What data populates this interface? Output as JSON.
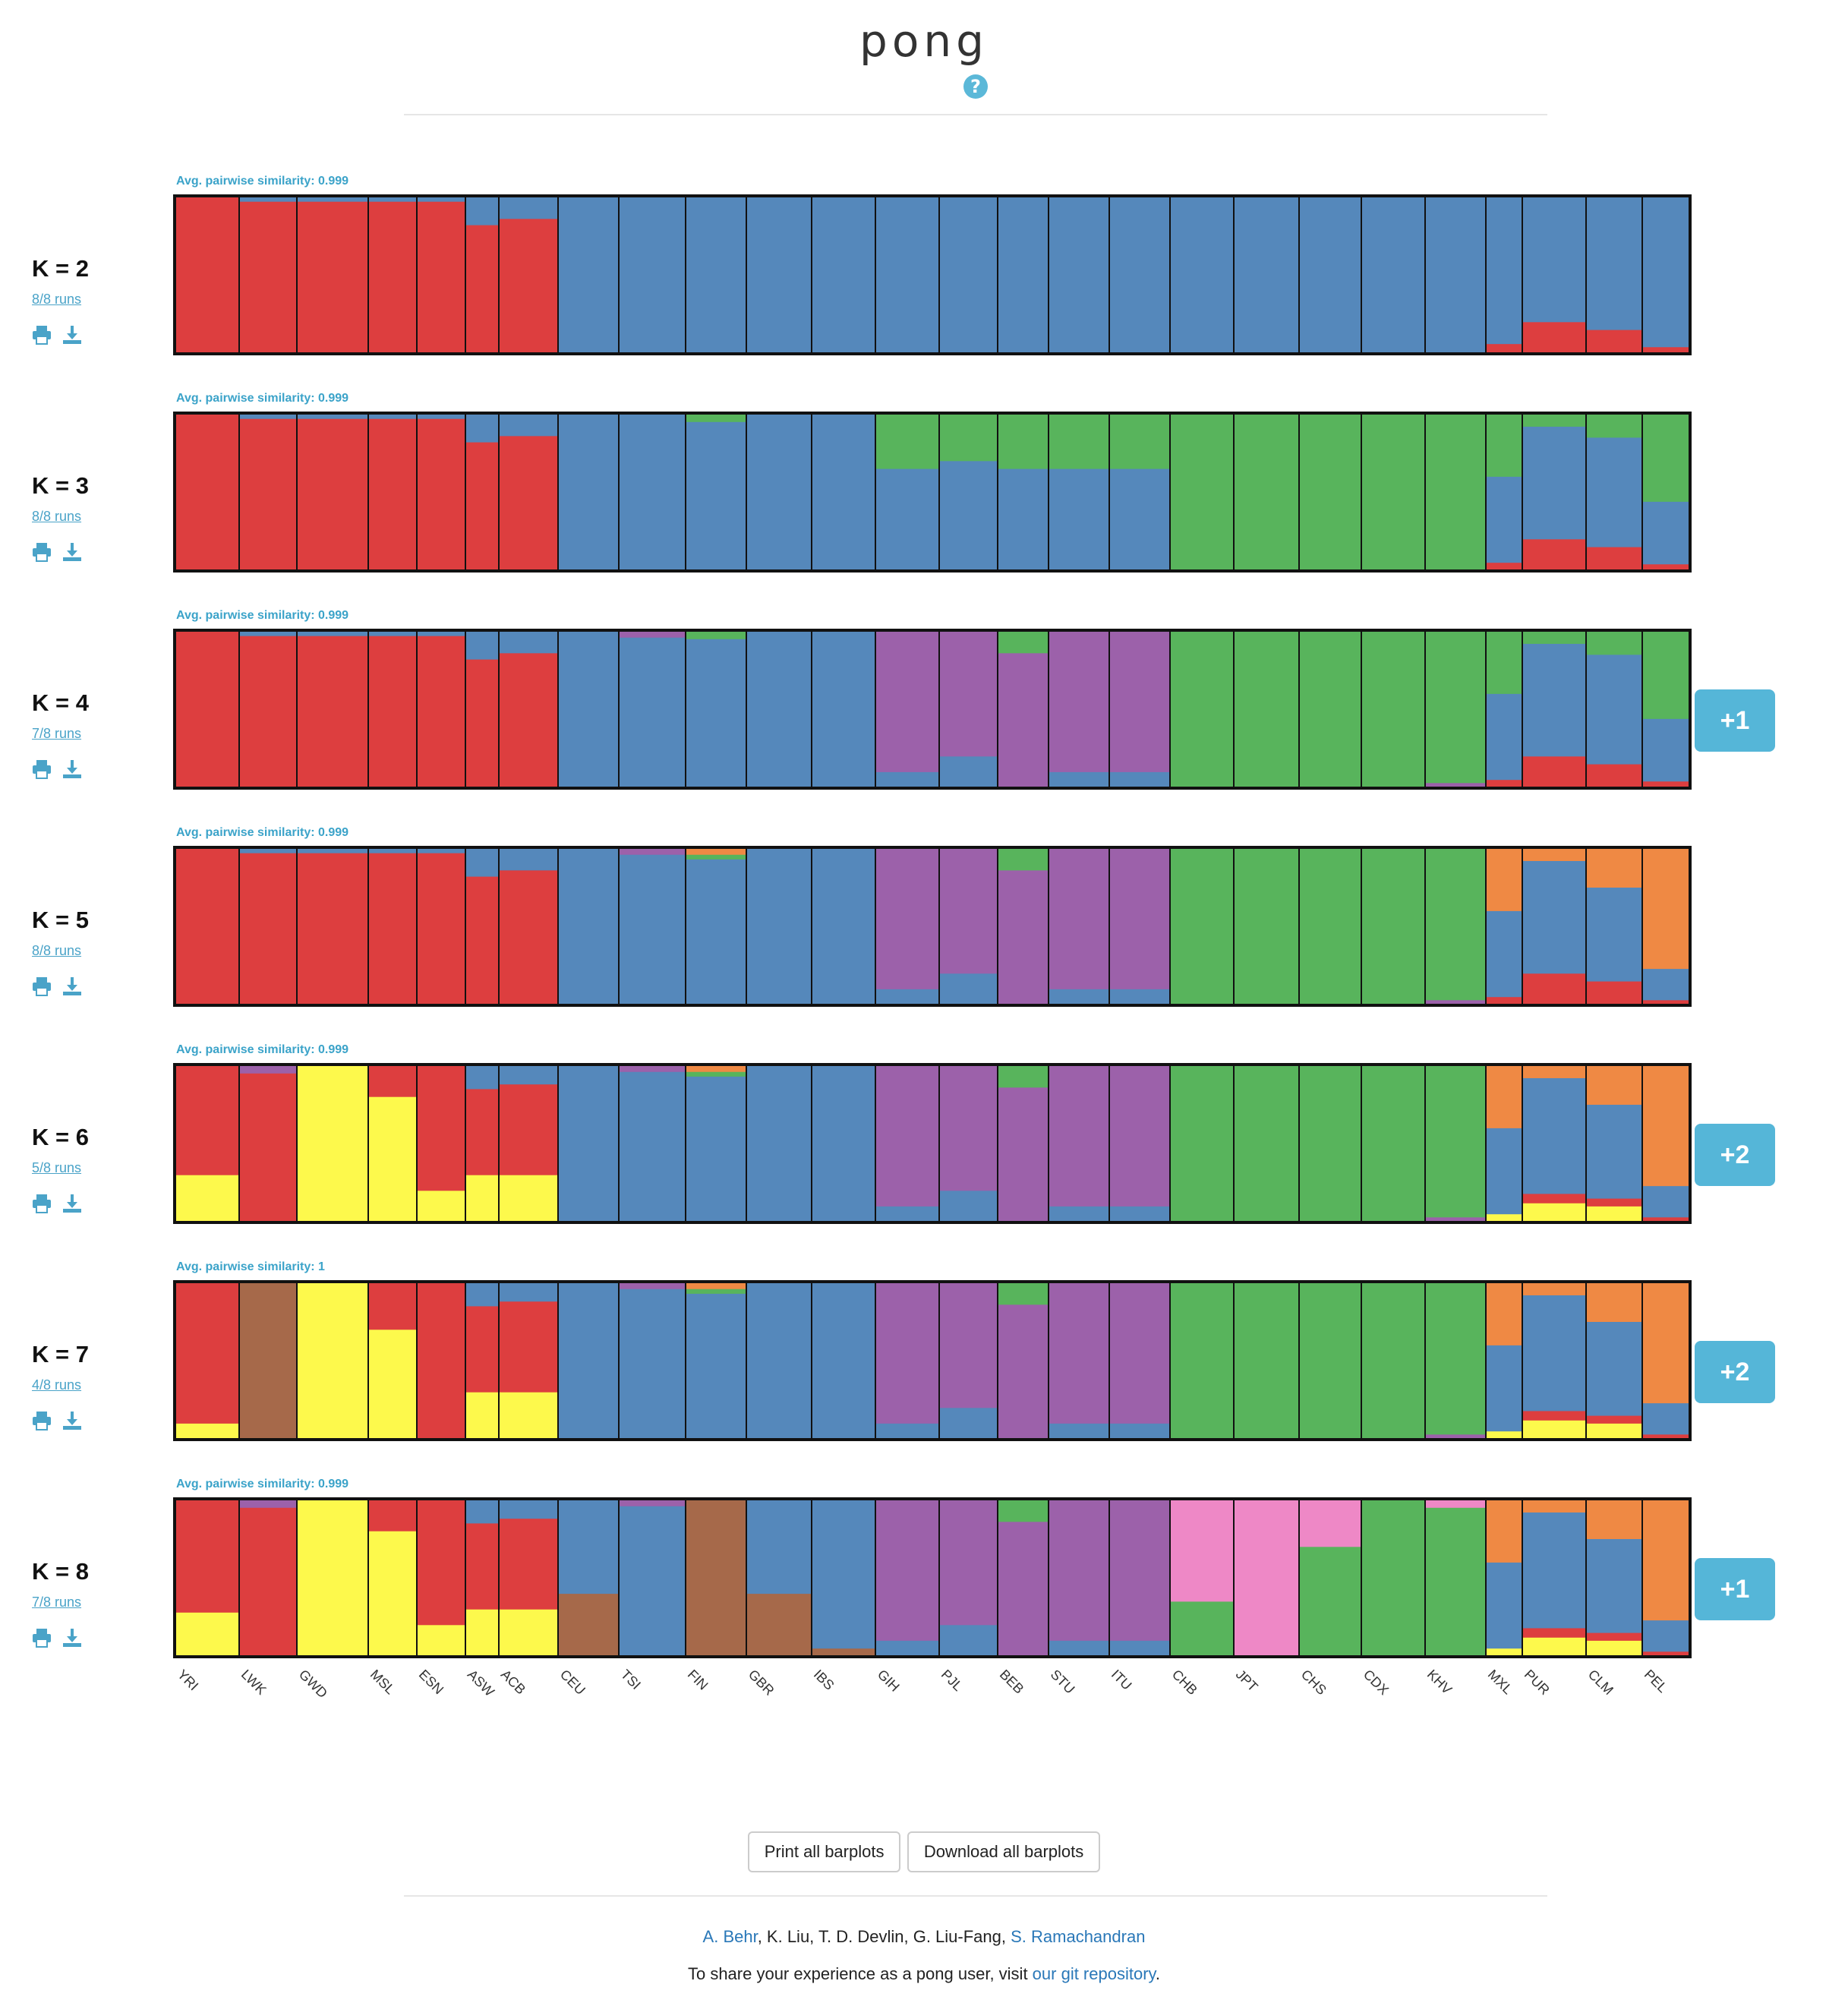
{
  "app": {
    "title": "pong",
    "help_icon": "question-circle-icon"
  },
  "colors": {
    "red": "#dd3e3f",
    "blue": "#5588bb",
    "green": "#58b45c",
    "purple": "#9c61aa",
    "orange": "#ef8944",
    "yellow": "#fdf94c",
    "brown": "#a6694a",
    "pink": "#ee88c6",
    "border": "#111111",
    "accent": "#55b6d8"
  },
  "populations": [
    "YRI",
    "LWK",
    "GWD",
    "MSL",
    "ESN",
    "ASW",
    "ACB",
    "CEU",
    "TSI",
    "FIN",
    "GBR",
    "IBS",
    "GIH",
    "PJL",
    "BEB",
    "STU",
    "ITU",
    "CHB",
    "JPT",
    "CHS",
    "CDX",
    "KHV",
    "MXL",
    "PUR",
    "CLM",
    "PEL"
  ],
  "k_rows": [
    {
      "label": "K = 2",
      "runs": "8/8 runs",
      "similarity": "Avg. pairwise similarity: 0.999",
      "extra": "",
      "icons": [
        "print-icon",
        "download-icon"
      ]
    },
    {
      "label": "K = 3",
      "runs": "8/8 runs",
      "similarity": "Avg. pairwise similarity: 0.999",
      "extra": "",
      "icons": [
        "print-icon",
        "download-icon"
      ]
    },
    {
      "label": "K = 4",
      "runs": "7/8 runs",
      "similarity": "Avg. pairwise similarity: 0.999",
      "extra": "+1",
      "icons": [
        "print-icon",
        "download-icon"
      ]
    },
    {
      "label": "K = 5",
      "runs": "8/8 runs",
      "similarity": "Avg. pairwise similarity: 0.999",
      "extra": "",
      "icons": [
        "print-icon",
        "download-icon"
      ]
    },
    {
      "label": "K = 6",
      "runs": "5/8 runs",
      "similarity": "Avg. pairwise similarity: 0.999",
      "extra": "+2",
      "icons": [
        "print-icon",
        "download-icon"
      ]
    },
    {
      "label": "K = 7",
      "runs": "4/8 runs",
      "similarity": "Avg. pairwise similarity: 1",
      "extra": "+2",
      "icons": [
        "print-icon",
        "download-icon"
      ]
    },
    {
      "label": "K = 8",
      "runs": "7/8 runs",
      "similarity": "Avg. pairwise similarity: 0.999",
      "extra": "+1",
      "icons": [
        "print-icon",
        "download-icon"
      ]
    }
  ],
  "buttons": {
    "print_all": "Print all barplots",
    "download_all": "Download all barplots"
  },
  "footer": {
    "author_1": "A. Behr",
    "authors_middle": ", K. Liu, T. D. Devlin, G. Liu-Fang, ",
    "author_last": "S. Ramachandran",
    "share_prefix": "To share your experience as a pong user, visit ",
    "share_link": "our git repository",
    "share_suffix": "."
  }
}
